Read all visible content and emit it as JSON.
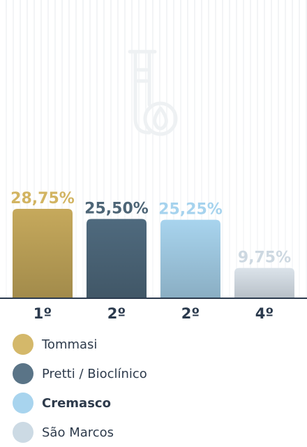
{
  "chart_data": {
    "type": "bar",
    "categories": [
      "1º",
      "2º",
      "2º",
      "4º"
    ],
    "values": [
      28.75,
      25.5,
      25.25,
      9.75
    ],
    "value_labels": [
      "28,75%",
      "25,50%",
      "25,25%",
      "9,75%"
    ],
    "series_names": [
      "Tommasi",
      "Pretti / Bioclínico",
      "Cremasco",
      "São Marcos"
    ],
    "colors": [
      "#c6a95c",
      "#4f6a7e",
      "#a8d4ee",
      "#dbe3ea"
    ],
    "label_colors": [
      "#d2b462",
      "#4d6576",
      "#a6d3ee",
      "#cdd8e1"
    ],
    "highlighted": "Cremasco",
    "ylim": [
      0,
      30
    ],
    "grid": false,
    "legend_position": "bottom"
  },
  "background_icon": "test-tube-drop-icon"
}
